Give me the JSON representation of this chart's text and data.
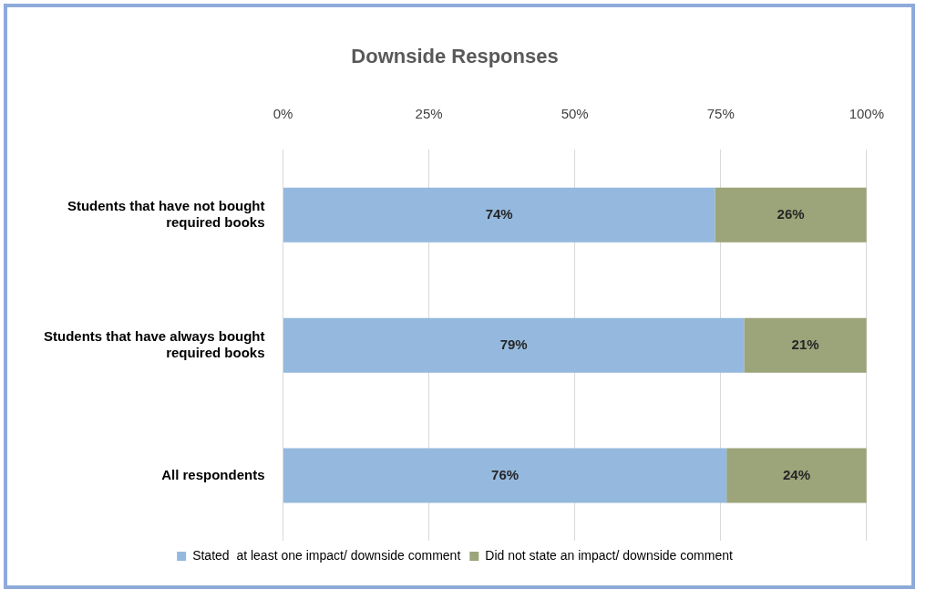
{
  "chart_data": {
    "type": "bar",
    "orientation": "horizontal",
    "stacked": true,
    "title": "Downside Responses",
    "categories": [
      "Students that have not bought required books",
      "Students that have always bought required books",
      "All respondents"
    ],
    "series": [
      {
        "name": "Stated  at least one impact/ downside comment",
        "color": "#95b9de",
        "values": [
          74,
          79,
          76
        ],
        "value_labels": [
          "74%",
          "79%",
          "76%"
        ]
      },
      {
        "name": "Did not state an impact/ downside comment",
        "color": "#9ca47a",
        "values": [
          26,
          21,
          24
        ],
        "value_labels": [
          "26%",
          "21%",
          "24%"
        ]
      }
    ],
    "xlim": [
      0,
      100
    ],
    "xticks": [
      {
        "value": 0,
        "label": "0%"
      },
      {
        "value": 25,
        "label": "25%"
      },
      {
        "value": 50,
        "label": "50%"
      },
      {
        "value": 75,
        "label": "75%"
      },
      {
        "value": 100,
        "label": "100%"
      }
    ],
    "grid": "x",
    "legend": "bottom"
  }
}
